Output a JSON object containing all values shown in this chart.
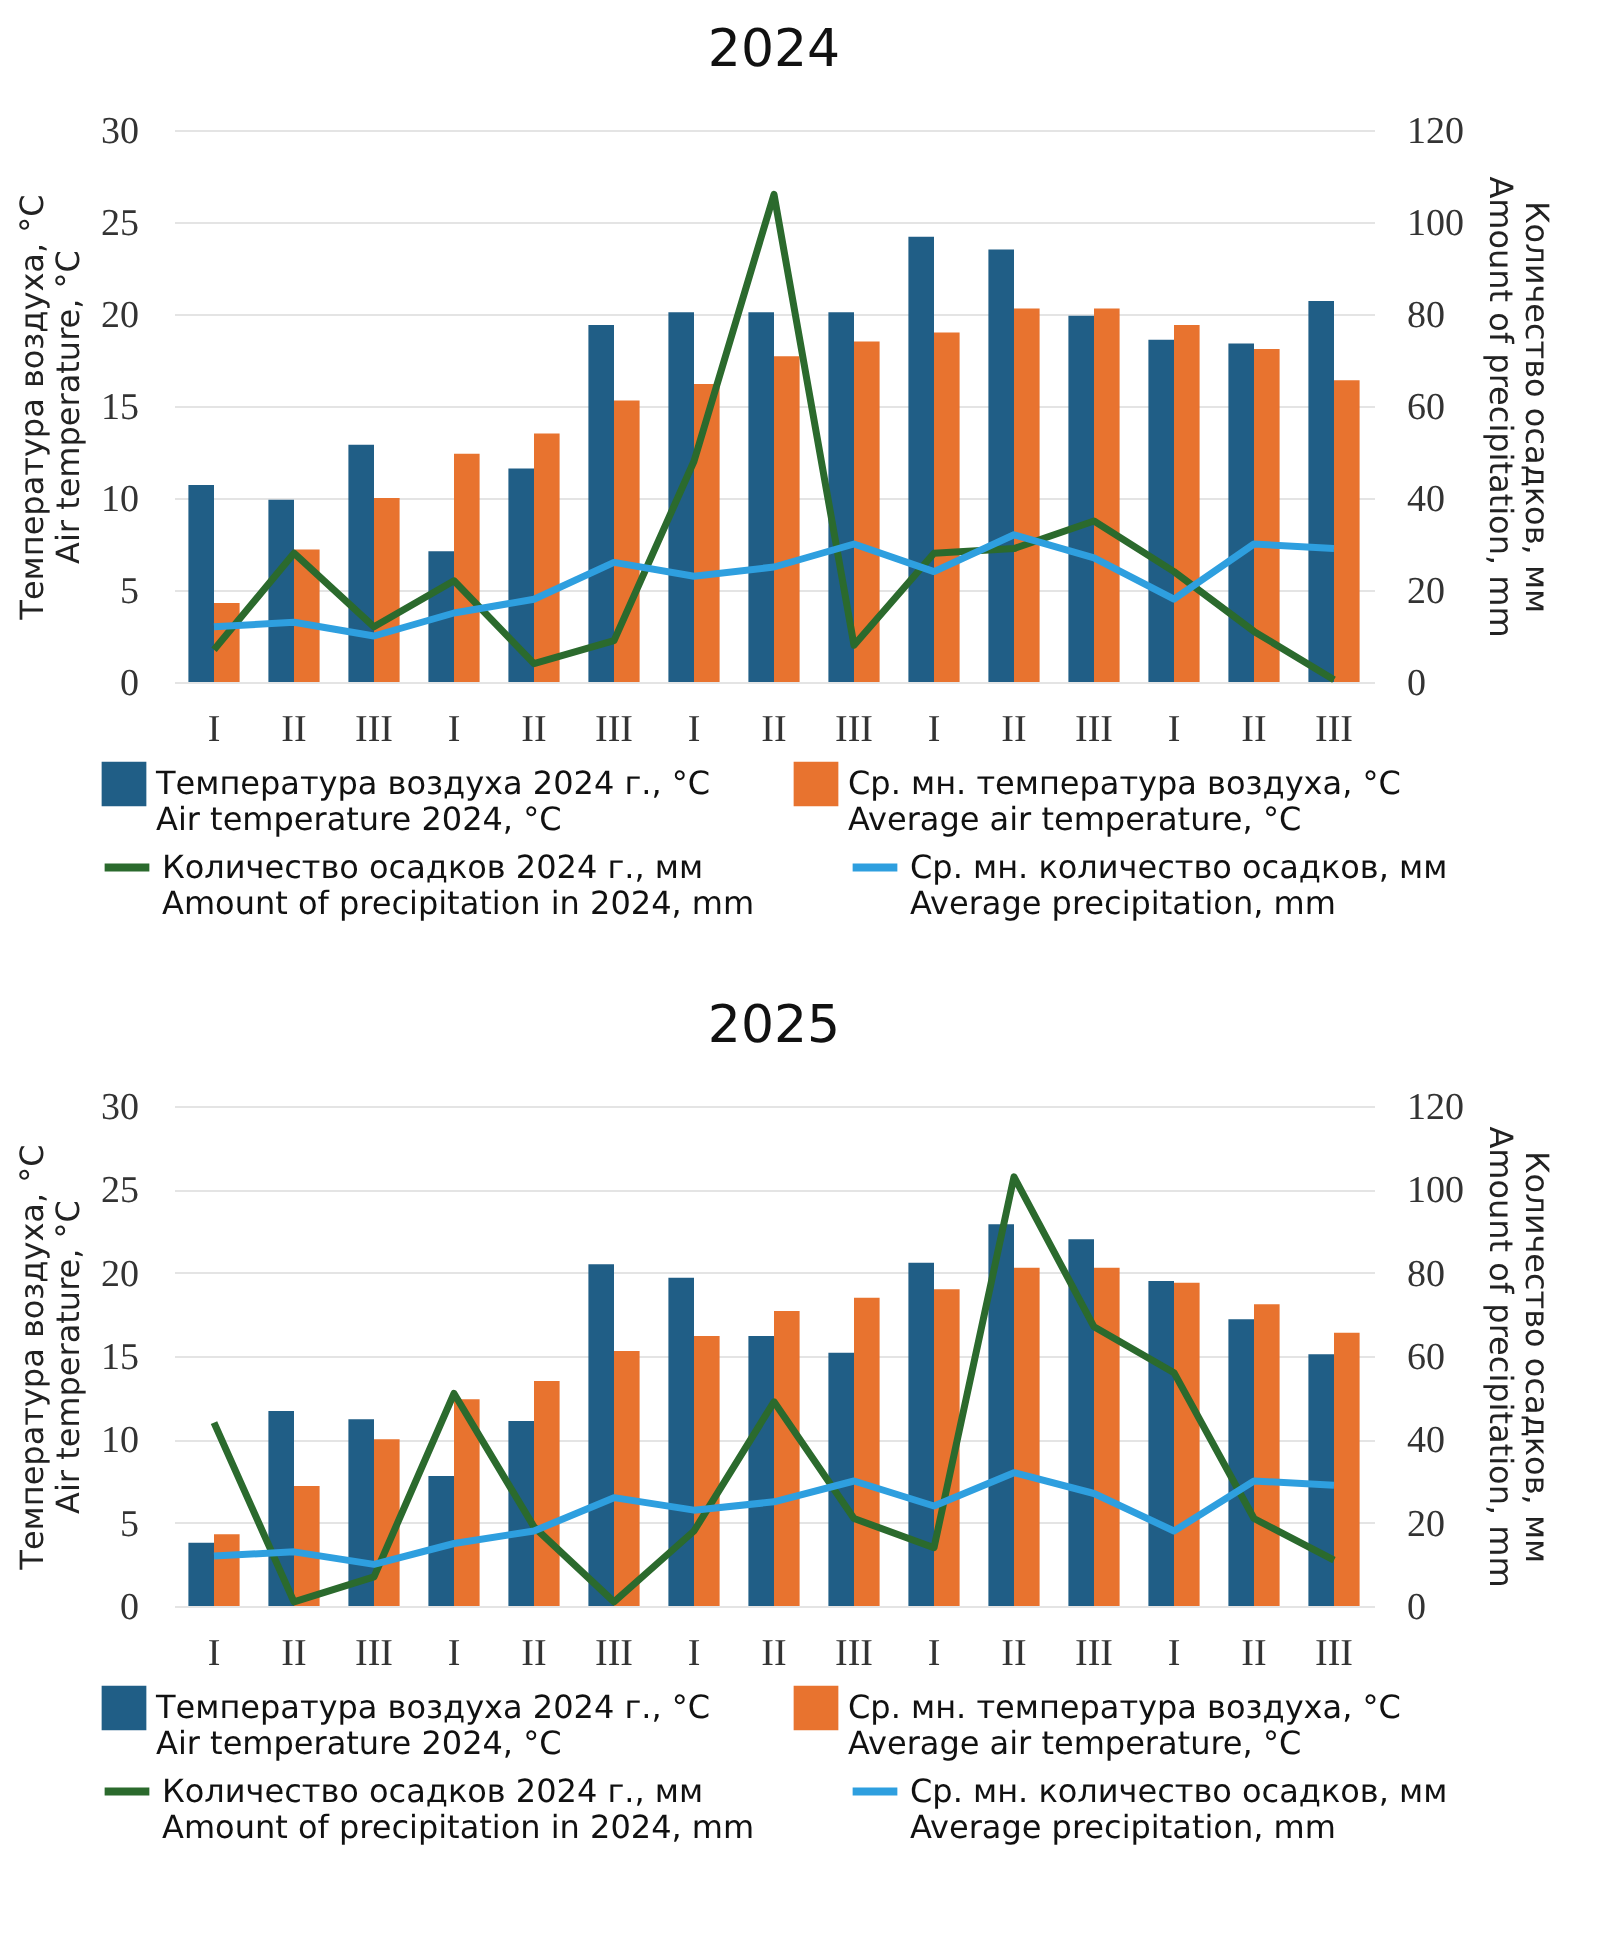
{
  "chart_data": [
    {
      "type": "bar",
      "title": "2024",
      "categories": [
        "I",
        "II",
        "III",
        "I",
        "II",
        "III",
        "I",
        "II",
        "III",
        "I",
        "II",
        "III",
        "I",
        "II",
        "III"
      ],
      "ylabel": "Температура воздуха, °C\nAir temperature, °C",
      "y2label": "Количество осадков, мм\nAmount of precipitation, mm",
      "ylim": [
        0,
        30
      ],
      "yticks": [
        0,
        5,
        10,
        15,
        20,
        25,
        30
      ],
      "y2lim": [
        0,
        120
      ],
      "y2ticks": [
        0,
        20,
        40,
        60,
        80,
        100,
        120
      ],
      "grid": "y",
      "legend": "bottom",
      "series": [
        {
          "name": "Температура воздуха 2024 г., °C\nAir temperature 2024, °C",
          "color": "#205e86",
          "values": [
            10.7,
            9.9,
            12.9,
            7.1,
            11.6,
            19.4,
            20.1,
            20.1,
            20.1,
            24.2,
            23.5,
            19.9,
            18.6,
            18.4,
            20.7
          ]
        },
        {
          "name": "Ср. мн. температура воздуха, °C\nAverage air temperature, °C",
          "color": "#e8732f",
          "values": [
            4.3,
            7.2,
            10.0,
            12.4,
            13.5,
            15.3,
            16.2,
            17.7,
            18.5,
            19.0,
            20.3,
            20.3,
            19.4,
            18.1,
            16.4
          ]
        },
        {
          "type": "line",
          "axis": "y2",
          "name": "Количество осадков 2024 г., мм\nAmount of precipitation in 2024, mm",
          "color": "#2b6a2d",
          "values": [
            7,
            28,
            12,
            22,
            4,
            9,
            48,
            106,
            8,
            28,
            29,
            35,
            24,
            11,
            0.5
          ]
        },
        {
          "type": "line",
          "axis": "y2",
          "name": "Ср. мн. количество осадков, мм\nAverage precipitation, mm",
          "color": "#2e9fdf",
          "values": [
            12,
            13,
            10,
            15,
            18,
            26,
            23,
            25,
            30,
            24,
            32,
            27,
            18,
            30,
            29
          ]
        }
      ]
    },
    {
      "type": "bar",
      "title": "2025",
      "categories": [
        "I",
        "II",
        "III",
        "I",
        "II",
        "III",
        "I",
        "II",
        "III",
        "I",
        "II",
        "III",
        "I",
        "II",
        "III"
      ],
      "ylabel": "Температура воздуха, °C\nAir temperature, °C",
      "y2label": "Количество осадков, мм\nAmount of precipitation, mm",
      "ylim": [
        0,
        30
      ],
      "yticks": [
        0,
        5,
        10,
        15,
        20,
        25,
        30
      ],
      "y2lim": [
        0,
        120
      ],
      "y2ticks": [
        0,
        20,
        40,
        60,
        80,
        100,
        120
      ],
      "grid": "y",
      "legend": "bottom",
      "series": [
        {
          "name": "Температура воздуха 2024 г., °C\nAir temperature 2024, °C",
          "color": "#205e86",
          "values": [
            3.8,
            11.7,
            11.2,
            7.8,
            11.1,
            20.5,
            19.7,
            16.2,
            15.2,
            20.6,
            22.9,
            22.0,
            19.5,
            17.2,
            15.1
          ]
        },
        {
          "name": "Ср. мн. температура воздуха, °C\nAverage air temperature, °C",
          "color": "#e8732f",
          "values": [
            4.3,
            7.2,
            10.0,
            12.4,
            13.5,
            15.3,
            16.2,
            17.7,
            18.5,
            19.0,
            20.3,
            20.3,
            19.4,
            18.1,
            16.4
          ]
        },
        {
          "type": "line",
          "axis": "y2",
          "name": "Количество осадков 2024 г., мм\nAmount of precipitation in 2024, mm",
          "color": "#2b6a2d",
          "values": [
            44,
            1,
            7,
            51,
            19,
            1,
            18,
            49,
            21,
            14,
            103,
            67,
            56,
            21,
            11
          ]
        },
        {
          "type": "line",
          "axis": "y2",
          "name": "Ср. мн. количество осадков, мм\nAverage precipitation, mm",
          "color": "#2e9fdf",
          "values": [
            12,
            13,
            10,
            15,
            18,
            26,
            23,
            25,
            30,
            24,
            32,
            27,
            18,
            30,
            29
          ]
        }
      ]
    }
  ]
}
